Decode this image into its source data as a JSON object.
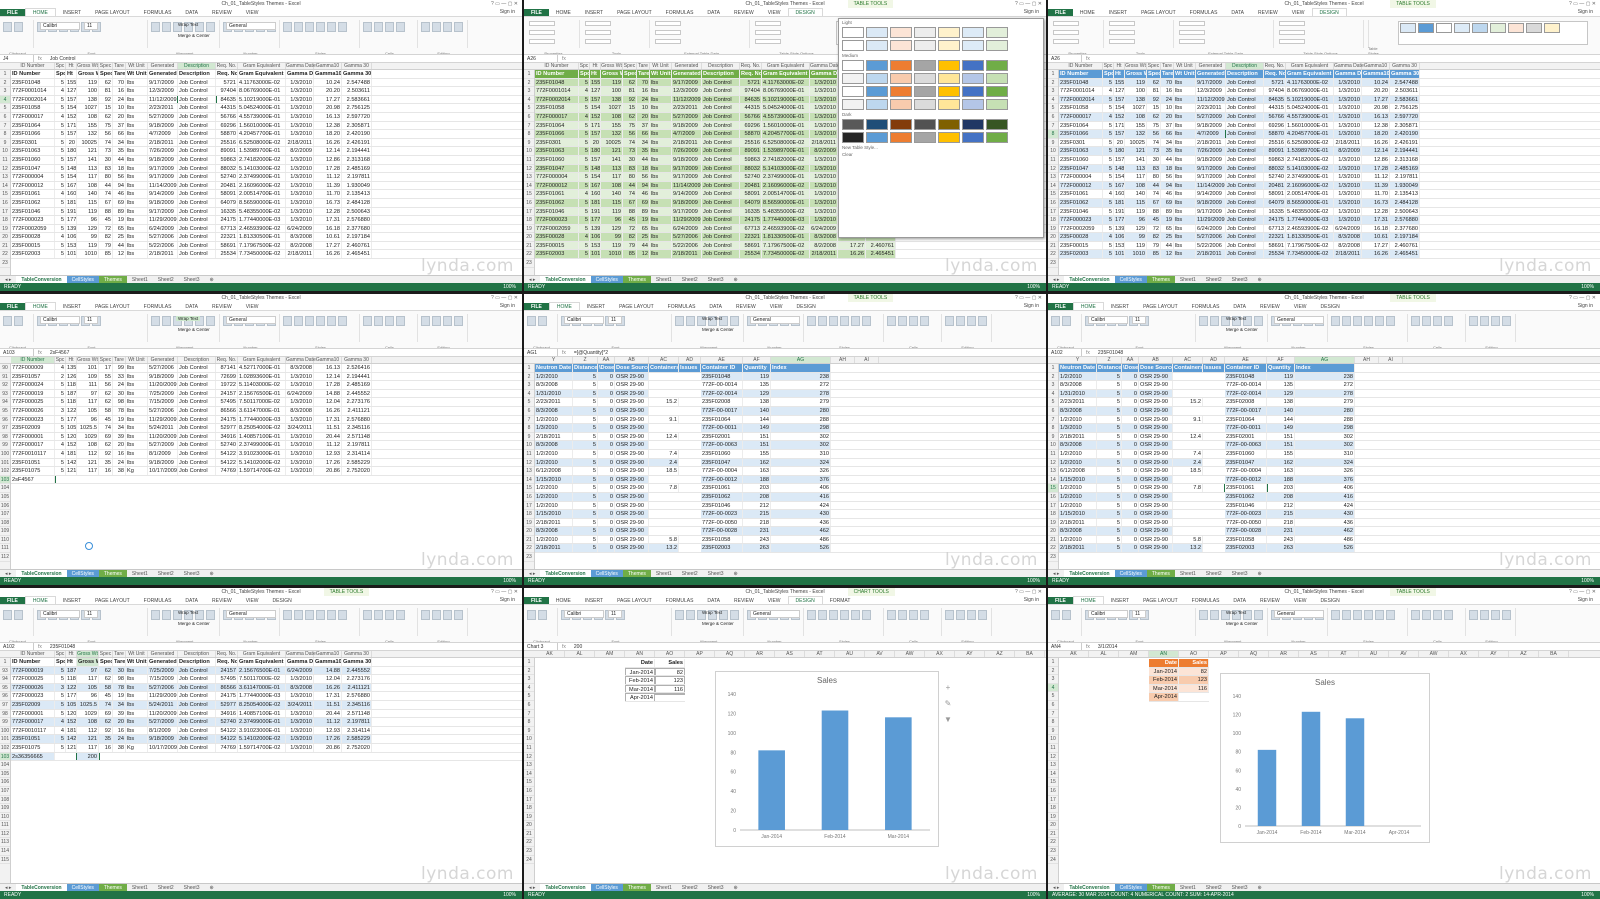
{
  "app": {
    "title": "Ch_01_TableStyles Themes - Excel",
    "title_table": "Ch_01_TableStyles Themes - Excel",
    "context_table": "TABLE TOOLS",
    "context_chart": "CHART TOOLS",
    "signin": "Sign in",
    "ribbon_tabs": [
      "FILE",
      "HOME",
      "INSERT",
      "PAGE LAYOUT",
      "FORMULAS",
      "DATA",
      "REVIEW",
      "VIEW"
    ],
    "ribbon_tabs_table": [
      "FILE",
      "HOME",
      "INSERT",
      "PAGE LAYOUT",
      "FORMULAS",
      "DATA",
      "REVIEW",
      "VIEW",
      "DESIGN"
    ],
    "ribbon_tabs_chart": [
      "FILE",
      "HOME",
      "INSERT",
      "PAGE LAYOUT",
      "FORMULAS",
      "DATA",
      "REVIEW",
      "VIEW",
      "DESIGN",
      "FORMAT"
    ],
    "groups": [
      "Clipboard",
      "Font",
      "Alignment",
      "Number",
      "Styles",
      "Cells",
      "Editing"
    ],
    "groups_table": [
      "Properties",
      "Tools",
      "External Table Data",
      "Table Style Options",
      "Table Styles"
    ],
    "font_name": "Calibri",
    "font_size": "11",
    "number_format": "General",
    "wrap_text": "Wrap Text",
    "merge": "Merge & Center",
    "fx": "fx",
    "sheet_tabs": [
      "TableConversion",
      "CellStyles",
      "Themes",
      "Sheet1",
      "Sheet2",
      "Sheet3"
    ],
    "status_ready": "READY",
    "zoom": "100%",
    "watermark": "lynda.com",
    "status_chart": "AVERAGE: 30 MAR 2014    COUNT: 4    NUMERICAL COUNT: 2    SUM: 14-APR-2014"
  },
  "colors": {
    "excel_green": "#217346",
    "table_blue": "#5b9bd5",
    "band_blue": "#dbe9f6",
    "table_green": "#70ad47",
    "band_green": "#e2efda",
    "bar_blue": "#5b9bd5"
  },
  "headers_main": [
    "ID Number",
    "Spc",
    "Ht",
    "Gross Wt",
    "Spec",
    "Tare",
    "Wt Unit",
    "Generated",
    "Description",
    "Req. No.",
    "Gram Equivalent",
    "Gamma Date",
    "Gamma10",
    "Gamma 30"
  ],
  "col_letters_main": [
    "A",
    "B",
    "C",
    "D",
    "E",
    "F",
    "G",
    "H",
    "I",
    "J",
    "K",
    "L",
    "M",
    "N",
    "O"
  ],
  "rows_main": [
    [
      "235F01048",
      "5",
      "155",
      "119",
      "62",
      "70",
      "lbs",
      "9/17/2009",
      "Job Control",
      "5721",
      "4.11763000E-02",
      "1/3/2010",
      "10.24",
      "2.547488"
    ],
    [
      "772F0001014",
      "4",
      "127",
      "100",
      "81",
      "16",
      "lbs",
      "12/3/2009",
      "Job Control",
      "97404",
      "8.06769000E-01",
      "1/3/2010",
      "20.20",
      "2.503611"
    ],
    [
      "772F0002014",
      "5",
      "157",
      "138",
      "92",
      "24",
      "lbs",
      "11/12/2009",
      "Job Control",
      "84635",
      "5.10219000E-01",
      "1/3/2010",
      "17.27",
      "2.583661"
    ],
    [
      "235F01058",
      "5",
      "154",
      "1027",
      "15",
      "10",
      "lbs",
      "2/23/2011",
      "Job Control",
      "44315",
      "5.04524000E-01",
      "1/3/2010",
      "20.98",
      "2.756125"
    ],
    [
      "772F000017",
      "4",
      "152",
      "108",
      "62",
      "20",
      "lbs",
      "5/27/2009",
      "Job Control",
      "56766",
      "4.55739000E-01",
      "1/3/2010",
      "16.13",
      "2.597720"
    ],
    [
      "235F01064",
      "5",
      "171",
      "155",
      "75",
      "37",
      "lbs",
      "9/18/2009",
      "Job Control",
      "69296",
      "1.56010000E-01",
      "1/3/2010",
      "12.38",
      "2.305871"
    ],
    [
      "235F01066",
      "5",
      "157",
      "132",
      "56",
      "66",
      "lbs",
      "4/7/2009",
      "Job Control",
      "58870",
      "4.20457700E-01",
      "1/3/2010",
      "18.20",
      "2.420190"
    ],
    [
      "235F0301",
      "5",
      "20",
      "10025",
      "74",
      "34",
      "lbs",
      "2/18/2011",
      "Job Control",
      "25516",
      "6.52508000E-02",
      "2/18/2011",
      "16.26",
      "2.426191"
    ],
    [
      "235F01063",
      "5",
      "180",
      "121",
      "73",
      "35",
      "lbs",
      "7/26/2009",
      "Job Control",
      "89091",
      "1.53989700E-01",
      "8/2/2009",
      "12.14",
      "2.194441"
    ],
    [
      "235F01060",
      "5",
      "157",
      "141",
      "30",
      "44",
      "lbs",
      "9/18/2009",
      "Job Control",
      "59863",
      "2.74182000E-02",
      "1/3/2010",
      "12.86",
      "2.313168"
    ],
    [
      "235F01047",
      "5",
      "148",
      "113",
      "83",
      "18",
      "lbs",
      "9/17/2009",
      "Job Control",
      "88032",
      "5.14103000E-02",
      "1/3/2010",
      "17.28",
      "2.485169"
    ],
    [
      "772F000004",
      "5",
      "154",
      "117",
      "80",
      "56",
      "lbs",
      "9/17/2009",
      "Job Control",
      "52740",
      "2.37499000E-01",
      "1/3/2010",
      "11.12",
      "2.197811"
    ],
    [
      "772F000012",
      "5",
      "167",
      "108",
      "44",
      "94",
      "lbs",
      "11/14/2009",
      "Job Control",
      "20481",
      "2.16096000E-02",
      "1/3/2010",
      "11.39",
      "1.930049"
    ],
    [
      "235F01061",
      "4",
      "160",
      "140",
      "74",
      "46",
      "lbs",
      "9/14/2009",
      "Job Control",
      "58091",
      "2.00514700E-01",
      "1/3/2010",
      "11.70",
      "2.135413"
    ],
    [
      "235F01062",
      "5",
      "181",
      "115",
      "67",
      "69",
      "lbs",
      "9/18/2009",
      "Job Control",
      "64079",
      "8.56590000E-01",
      "1/3/2010",
      "16.73",
      "2.484128"
    ],
    [
      "235F01046",
      "5",
      "191",
      "119",
      "88",
      "89",
      "lbs",
      "9/17/2009",
      "Job Control",
      "16335",
      "5.48355000E-02",
      "1/3/2010",
      "12.28",
      "2.500643"
    ],
    [
      "772F000023",
      "5",
      "177",
      "96",
      "45",
      "19",
      "lbs",
      "11/29/2009",
      "Job Control",
      "24175",
      "1.77440000E-03",
      "1/3/2010",
      "17.31",
      "2.576880"
    ],
    [
      "772F0002059",
      "5",
      "139",
      "129",
      "72",
      "65",
      "lbs",
      "6/24/2009",
      "Job Control",
      "67713",
      "2.46593900E-02",
      "6/24/2009",
      "16.18",
      "2.377680"
    ],
    [
      "235F00028",
      "4",
      "106",
      "99",
      "82",
      "25",
      "lbs",
      "5/27/2006",
      "Job Control",
      "22321",
      "1.81330500E-01",
      "8/3/2008",
      "10.61",
      "2.197184"
    ],
    [
      "235F00015",
      "5",
      "153",
      "119",
      "79",
      "44",
      "lbs",
      "5/22/2006",
      "Job Control",
      "58691",
      "7.17967500E-02",
      "8/2/2008",
      "17.27",
      "2.460761"
    ],
    [
      "235F02003",
      "5",
      "101",
      "1010",
      "85",
      "12",
      "lbs",
      "2/18/2011",
      "Job Control",
      "25534",
      "7.73450000E-02",
      "2/18/2011",
      "16.26",
      "2.465451"
    ]
  ],
  "rows_scroll": [
    [
      "772F000009",
      "4",
      "135",
      "101",
      "17",
      "99",
      "lbs",
      "5/27/2006",
      "Job Control",
      "87141",
      "4.52717000E-01",
      "8/3/2008",
      "16.13",
      "2.526416"
    ],
    [
      "235F01057",
      "2",
      "126",
      "109",
      "55",
      "33",
      "lbs",
      "9/18/2009",
      "Job Control",
      "72699",
      "1.02893600E-01",
      "1/3/2010",
      "12.14",
      "2.194441"
    ],
    [
      "772F000024",
      "5",
      "118",
      "111",
      "56",
      "24",
      "lbs",
      "11/20/2009",
      "Job Control",
      "19722",
      "5.11403000E-02",
      "1/3/2010",
      "17.28",
      "2.485169"
    ],
    [
      "772F000019",
      "5",
      "187",
      "97",
      "62",
      "30",
      "lbs",
      "7/25/2009",
      "Job Control",
      "24157",
      "2.15676500E-01",
      "6/24/2009",
      "14.88",
      "2.445552"
    ],
    [
      "772F000025",
      "5",
      "118",
      "117",
      "62",
      "98",
      "lbs",
      "7/15/2009",
      "Job Control",
      "57495",
      "7.50117000E-02",
      "1/3/2010",
      "12.04",
      "2.273176"
    ],
    [
      "772F000026",
      "3",
      "122",
      "105",
      "58",
      "78",
      "lbs",
      "5/27/2006",
      "Job Control",
      "86566",
      "3.61147000E-01",
      "8/3/2008",
      "16.26",
      "2.411121"
    ],
    [
      "772F000023",
      "5",
      "177",
      "96",
      "45",
      "19",
      "lbs",
      "11/29/2009",
      "Job Control",
      "24175",
      "1.77440000E-03",
      "1/3/2010",
      "17.31",
      "2.576880"
    ],
    [
      "235F02009",
      "5",
      "105",
      "1025.5",
      "74",
      "34",
      "lbs",
      "5/24/2011",
      "Job Control",
      "52977",
      "8.25054000E-02",
      "3/24/2011",
      "11.51",
      "2.345116"
    ],
    [
      "772F000001",
      "5",
      "120",
      "1029",
      "69",
      "39",
      "lbs",
      "11/20/2009",
      "Job Control",
      "34916",
      "1.40857100E-01",
      "1/3/2010",
      "20.44",
      "2.571148"
    ],
    [
      "772F000017",
      "4",
      "152",
      "108",
      "62",
      "20",
      "lbs",
      "5/27/2009",
      "Job Control",
      "52740",
      "2.37499000E-01",
      "1/3/2010",
      "11.12",
      "2.197811"
    ],
    [
      "772F0010117",
      "4",
      "181",
      "112",
      "92",
      "16",
      "lbs",
      "8/1/2009",
      "Job Control",
      "54122",
      "3.91023000E-01",
      "1/3/2010",
      "12.93",
      "2.314114"
    ],
    [
      "235F01051",
      "5",
      "142",
      "121",
      "35",
      "24",
      "lbs",
      "9/18/2009",
      "Job Control",
      "54122",
      "5.14102000E-02",
      "1/3/2010",
      "17.26",
      "2.585229"
    ],
    [
      "235F01075",
      "5",
      "121",
      "117",
      "16",
      "38",
      "Kg",
      "10/17/2009",
      "Job Control",
      "74769",
      "1.59714700E-02",
      "1/3/2010",
      "20.86",
      "2.752020"
    ]
  ],
  "rownums_scroll": [
    "90",
    "91",
    "92",
    "93",
    "94",
    "95",
    "96",
    "97",
    "98",
    "99",
    "100",
    "101",
    "102"
  ],
  "new_entry": "2sF4567",
  "new_entry_b": "2s36356665",
  "new_entry_b_val": "200",
  "headers_right": [
    "Neutron Date",
    "Distance",
    "\\Dose",
    "Dose Source",
    "Containers",
    "Issues",
    "Container ID",
    "Quantity",
    "Index"
  ],
  "col_letters_right": [
    "Y",
    "Z",
    "AA",
    "AB",
    "AC",
    "AD",
    "AE",
    "AF",
    "AG",
    "AH",
    "AI"
  ],
  "rows_right": [
    [
      "1/2/2010",
      "5",
      "0",
      "OSR 29-90",
      "",
      "",
      "235F01048",
      "119",
      "238"
    ],
    [
      "8/3/2008",
      "5",
      "0",
      "OSR 29-90",
      "",
      "",
      "772F-00-0014",
      "135",
      "272"
    ],
    [
      "1/31/2010",
      "5",
      "0",
      "OSR 29-90",
      "",
      "",
      "772F-02-0014",
      "129",
      "278"
    ],
    [
      "2/23/2011",
      "5",
      "0",
      "OSR 29-90",
      "15.2",
      "",
      "235F02008",
      "138",
      "279"
    ],
    [
      "8/3/2008",
      "5",
      "0",
      "OSR 29-90",
      "",
      "",
      "772F-00-0017",
      "140",
      "280"
    ],
    [
      "1/2/2010",
      "5",
      "0",
      "OSR 29-90",
      "9.1",
      "",
      "235F01064",
      "144",
      "288"
    ],
    [
      "1/3/2010",
      "5",
      "0",
      "OSR 29-90",
      "",
      "",
      "772F-00-0011",
      "149",
      "298"
    ],
    [
      "2/18/2011",
      "5",
      "0",
      "OSR 29-90",
      "12.4",
      "",
      "235F02001",
      "151",
      "302"
    ],
    [
      "8/3/2008",
      "5",
      "0",
      "OSR 29-90",
      "",
      "",
      "772F-00-0063",
      "151",
      "302"
    ],
    [
      "1/2/2010",
      "5",
      "0",
      "OSR 29-90",
      "7.4",
      "",
      "235F01060",
      "155",
      "310"
    ],
    [
      "1/2/2010",
      "5",
      "0",
      "OSR 29-90",
      "2.4",
      "",
      "235F01047",
      "162",
      "324"
    ],
    [
      "6/12/2008",
      "5",
      "0",
      "OSR 29-90",
      "18.5",
      "",
      "772F-00-0004",
      "163",
      "326"
    ],
    [
      "1/15/2010",
      "5",
      "0",
      "OSR 29-90",
      "",
      "",
      "772F-00-0012",
      "188",
      "376"
    ],
    [
      "1/2/2010",
      "5",
      "0",
      "OSR 29-90",
      "7.8",
      "",
      "235F01061",
      "203",
      "406"
    ],
    [
      "1/2/2010",
      "5",
      "0",
      "OSR 29-90",
      "",
      "",
      "235F01062",
      "208",
      "416"
    ],
    [
      "1/2/2010",
      "5",
      "0",
      "OSR 29-90",
      "",
      "",
      "235F01046",
      "212",
      "424"
    ],
    [
      "1/15/2010",
      "5",
      "0",
      "OSR 29-90",
      "",
      "",
      "772F-00-0023",
      "215",
      "430"
    ],
    [
      "2/18/2011",
      "5",
      "0",
      "OSR 29-90",
      "",
      "",
      "772F-00-0050",
      "218",
      "436"
    ],
    [
      "8/3/2008",
      "5",
      "0",
      "OSR 29-90",
      "",
      "",
      "772F-00-0028",
      "231",
      "462"
    ],
    [
      "1/2/2010",
      "5",
      "0",
      "OSR 29-90",
      "5.8",
      "",
      "235F01058",
      "243",
      "486"
    ],
    [
      "2/18/2011",
      "5",
      "0",
      "OSR 29-90",
      "13.2",
      "",
      "235F02003",
      "263",
      "526"
    ]
  ],
  "sales": {
    "headers": [
      "Date",
      "Sales"
    ],
    "rows": [
      [
        "Jan-2014",
        "82"
      ],
      [
        "Feb-2014",
        "123"
      ],
      [
        "Mar-2014",
        "116"
      ],
      [
        "Apr-2014",
        ""
      ]
    ]
  },
  "name_boxes": [
    "J4",
    "A26",
    "A103",
    "AG1",
    "A102",
    "Chart 3",
    "AN4"
  ],
  "formulas": [
    "Job Control",
    "",
    "2sF4567",
    "=[@Quantity]*2",
    "235F01048",
    "200",
    "3/1/2014"
  ],
  "table_styles_menu": {
    "light": "Light",
    "medium": "Medium",
    "dark": "Dark",
    "new": "New Table Style...",
    "clear": "Clear"
  },
  "chart_data": [
    {
      "type": "bar",
      "title": "Sales",
      "categories": [
        "Jan-2014",
        "Feb-2014",
        "Mar-2014"
      ],
      "values": [
        82,
        123,
        116
      ],
      "xlabel": "",
      "ylabel": "",
      "ylim": [
        0,
        140
      ],
      "yticks": [
        0,
        20,
        40,
        60,
        80,
        100,
        120,
        140
      ],
      "grid": false,
      "legend": "none"
    },
    {
      "type": "bar",
      "title": "Sales",
      "categories": [
        "Jan-2014",
        "Feb-2014",
        "Mar-2014",
        "Apr-2014"
      ],
      "values": [
        82,
        123,
        116,
        null
      ],
      "xlabel": "",
      "ylabel": "",
      "ylim": [
        0,
        140
      ],
      "yticks": [
        0,
        20,
        40,
        60,
        80,
        100,
        120,
        140
      ],
      "grid": false,
      "legend": "none"
    }
  ]
}
